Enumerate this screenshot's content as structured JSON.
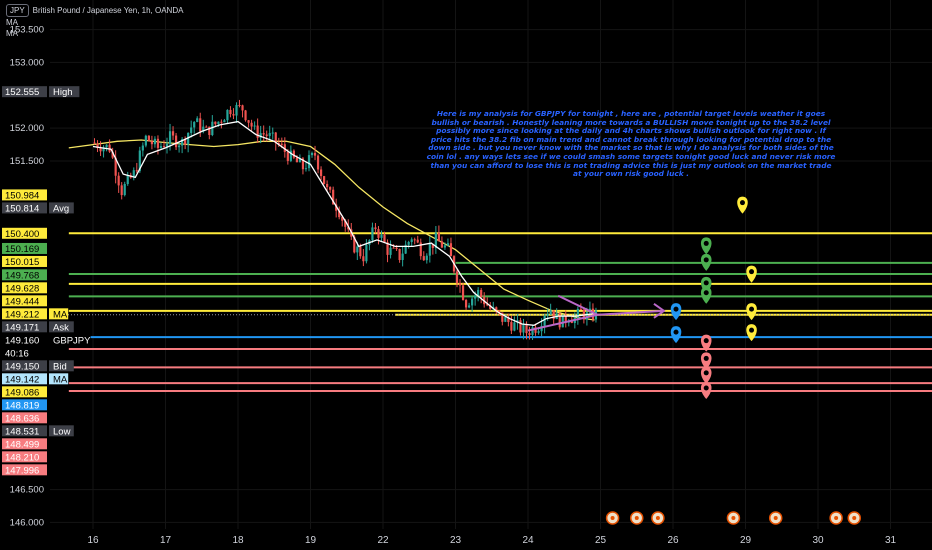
{
  "header": {
    "symbol_badge": "JPY",
    "title": "British Pound / Japanese Yen, 1h, OANDA",
    "indicators": [
      "MA",
      "MA"
    ]
  },
  "annotation_text": "Here is my analysis for GBPJPY for tonight , here are , potential target levels weather it goes bullish or bearish . Honestly leaning more towards a BULLISH move tonight up to the 38.2 level possibly more since looking at the daily and 4h charts shows bullish outlook for right now . If price hits the 38.2 fib on main trend and cannot break through looking for potential drop to the down side . but you never know with the market so that is why I do analysis for both sides of the coin lol . any ways lets see if we could smash some targets tonight good luck and never risk more than you can afford to lose this is not trading advice this is just my outlook on the market trade at your own risk good luck .",
  "colors": {
    "background": "#000000",
    "text": "#d1d4dc",
    "candle_up": "#26a69a",
    "candle_down": "#ef5350",
    "ma_white": "#ffffff",
    "ma_yellow": "#f5e663",
    "level_yellow": "#ffeb3b",
    "level_green": "#4caf50",
    "level_red": "#f77c80",
    "level_blue": "#2196f3",
    "arrow_purple": "#ba68c8",
    "annotation_blue": "#2962ff"
  },
  "chart_data": {
    "type": "candlestick",
    "title": "British Pound / Japanese Yen, 1h, OANDA",
    "ylim": [
      145.9,
      153.95
    ],
    "y_ticks": [
      "153.500",
      "153.000",
      "152.000",
      "151.500",
      "146.500",
      "146.000"
    ],
    "x_ticks": [
      {
        "label": "16",
        "t": 0.0
      },
      {
        "label": "17",
        "t": 24
      },
      {
        "label": "18",
        "t": 48
      },
      {
        "label": "19",
        "t": 72
      },
      {
        "label": "22",
        "t": 96
      },
      {
        "label": "23",
        "t": 120
      },
      {
        "label": "24",
        "t": 144
      },
      {
        "label": "25",
        "t": 168
      },
      {
        "label": "26",
        "t": 192
      },
      {
        "label": "29",
        "t": 216
      },
      {
        "label": "30",
        "t": 240
      },
      {
        "label": "31",
        "t": 264
      }
    ],
    "price_path": [
      [
        0,
        151.78
      ],
      [
        6,
        151.7
      ],
      [
        10,
        151.05
      ],
      [
        14,
        151.3
      ],
      [
        18,
        151.85
      ],
      [
        22,
        151.7
      ],
      [
        26,
        151.85
      ],
      [
        30,
        151.78
      ],
      [
        34,
        152.1
      ],
      [
        38,
        151.95
      ],
      [
        42,
        152.1
      ],
      [
        46,
        152.3
      ],
      [
        50,
        152.3
      ],
      [
        54,
        151.95
      ],
      [
        58,
        151.9
      ],
      [
        62,
        151.75
      ],
      [
        66,
        151.55
      ],
      [
        70,
        151.4
      ],
      [
        74,
        151.6
      ],
      [
        78,
        151.05
      ],
      [
        82,
        150.75
      ],
      [
        86,
        150.25
      ],
      [
        90,
        150.05
      ],
      [
        94,
        150.5
      ],
      [
        98,
        150.15
      ],
      [
        102,
        150.05
      ],
      [
        106,
        150.35
      ],
      [
        110,
        150.1
      ],
      [
        114,
        150.3
      ],
      [
        118,
        150.15
      ],
      [
        122,
        149.6
      ],
      [
        124,
        149.35
      ],
      [
        128,
        149.5
      ],
      [
        132,
        149.25
      ],
      [
        136,
        149.1
      ],
      [
        140,
        149.0
      ],
      [
        144,
        148.9
      ],
      [
        146,
        148.95
      ],
      [
        148,
        149.0
      ],
      [
        150,
        149.2
      ],
      [
        152,
        149.25
      ],
      [
        154,
        149.1
      ],
      [
        156,
        149.05
      ],
      [
        158,
        149.15
      ],
      [
        160,
        149.1
      ],
      [
        162,
        149.2
      ],
      [
        164,
        149.14
      ],
      [
        166,
        149.16
      ]
    ],
    "ma_white": [
      [
        0,
        151.72
      ],
      [
        6,
        151.68
      ],
      [
        10,
        151.3
      ],
      [
        14,
        151.25
      ],
      [
        18,
        151.6
      ],
      [
        24,
        151.7
      ],
      [
        30,
        151.82
      ],
      [
        36,
        151.95
      ],
      [
        42,
        152.05
      ],
      [
        48,
        152.1
      ],
      [
        54,
        151.9
      ],
      [
        60,
        151.8
      ],
      [
        66,
        151.6
      ],
      [
        72,
        151.45
      ],
      [
        78,
        151.0
      ],
      [
        84,
        150.55
      ],
      [
        88,
        150.2
      ],
      [
        94,
        150.3
      ],
      [
        100,
        150.2
      ],
      [
        106,
        150.2
      ],
      [
        112,
        150.25
      ],
      [
        118,
        150.05
      ],
      [
        122,
        149.75
      ],
      [
        126,
        149.5
      ],
      [
        130,
        149.35
      ],
      [
        134,
        149.2
      ],
      [
        138,
        149.1
      ],
      [
        142,
        149.02
      ],
      [
        146,
        149.0
      ],
      [
        150,
        149.1
      ],
      [
        154,
        149.14
      ],
      [
        160,
        149.14
      ],
      [
        166,
        149.18
      ]
    ],
    "ma_yellow": [
      [
        -8,
        151.7
      ],
      [
        0,
        151.75
      ],
      [
        8,
        151.8
      ],
      [
        16,
        151.82
      ],
      [
        24,
        151.78
      ],
      [
        32,
        151.75
      ],
      [
        40,
        151.72
      ],
      [
        48,
        151.75
      ],
      [
        56,
        151.8
      ],
      [
        64,
        151.8
      ],
      [
        72,
        151.72
      ],
      [
        80,
        151.45
      ],
      [
        88,
        151.1
      ],
      [
        96,
        150.8
      ],
      [
        104,
        150.55
      ],
      [
        112,
        150.35
      ],
      [
        120,
        150.15
      ],
      [
        128,
        149.85
      ],
      [
        136,
        149.55
      ],
      [
        144,
        149.38
      ],
      [
        152,
        149.22
      ],
      [
        160,
        149.12
      ],
      [
        166,
        149.08
      ]
    ],
    "price_labels": [
      {
        "text": "152.555",
        "label": "High",
        "value": 152.555,
        "bg": "#3d3f47",
        "fg": "#ffffff",
        "label_bg": "#3d3f47"
      },
      {
        "text": "150.984",
        "label": "",
        "value": 150.984,
        "bg": "#ffeb3b",
        "fg": "#000000"
      },
      {
        "text": "150.814",
        "label": "Avg",
        "value": 150.814,
        "bg": "#3d3f47",
        "fg": "#ffffff",
        "label_bg": "#3d3f47"
      },
      {
        "text": "150.400",
        "label": "",
        "value": 150.4,
        "bg": "#ffeb3b",
        "fg": "#000000"
      },
      {
        "text": "150.169",
        "label": "",
        "value": 150.169,
        "bg": "#4caf50",
        "fg": "#000000"
      },
      {
        "text": "150.015",
        "label": "",
        "value": 150.015,
        "bg": "#ffeb3b",
        "fg": "#000000"
      },
      {
        "text": "149.768",
        "label": "",
        "value": 149.768,
        "bg": "#4caf50",
        "fg": "#000000"
      },
      {
        "text": "149.628",
        "label": "",
        "value": 149.628,
        "bg": "#ffeb3b",
        "fg": "#000000"
      },
      {
        "text": "149.444",
        "label": "",
        "value": 149.444,
        "bg": "#ffeb3b",
        "fg": "#000000"
      },
      {
        "text": "149.212",
        "label": "MA",
        "value": 149.212,
        "bg": "#ffeb3b",
        "fg": "#000000",
        "label_bg": "#ffeb3b"
      },
      {
        "text": "149.171",
        "label": "Ask",
        "value": 149.171,
        "bg": "#3d3f47",
        "fg": "#ffffff",
        "label_bg": "#3d3f47"
      },
      {
        "text": "149.160",
        "label": "GBPJPY",
        "value": 149.16,
        "bg": "#000000",
        "fg": "#ffffff",
        "label_bg": "#000000"
      },
      {
        "text": "40:16",
        "label": "",
        "value": 149.035,
        "bg": "#000000",
        "fg": "#ffffff"
      },
      {
        "text": "149.150",
        "label": "Bid",
        "value": 149.15,
        "bg": "#3d3f47",
        "fg": "#ffffff",
        "label_bg": "#3d3f47"
      },
      {
        "text": "149.142",
        "label": "MA",
        "value": 149.142,
        "bg": "#b3e5fc",
        "fg": "#000000",
        "label_bg": "#b3e5fc"
      },
      {
        "text": "149.086",
        "label": "",
        "value": 149.086,
        "bg": "#ffeb3b",
        "fg": "#000000"
      },
      {
        "text": "148.819",
        "label": "",
        "value": 148.819,
        "bg": "#2196f3",
        "fg": "#ffffff"
      },
      {
        "text": "148.636",
        "label": "",
        "value": 148.636,
        "bg": "#f77c80",
        "fg": "#ffffff"
      },
      {
        "text": "148.531",
        "label": "Low",
        "value": 148.531,
        "bg": "#3d3f47",
        "fg": "#ffffff",
        "label_bg": "#3d3f47"
      },
      {
        "text": "148.499",
        "label": "",
        "value": 148.499,
        "bg": "#f77c80",
        "fg": "#ffffff"
      },
      {
        "text": "148.210",
        "label": "",
        "value": 148.21,
        "bg": "#f77c80",
        "fg": "#ffffff"
      },
      {
        "text": "147.996",
        "label": "",
        "value": 147.996,
        "bg": "#f77c80",
        "fg": "#ffffff"
      }
    ],
    "levels": [
      {
        "price": 150.4,
        "color": "#ffeb3b",
        "start_t": -8
      },
      {
        "price": 149.95,
        "color": "#4caf50",
        "start_t": 120
      },
      {
        "price": 149.78,
        "color": "#4caf50",
        "start_t": -8
      },
      {
        "price": 149.63,
        "color": "#ffeb3b",
        "start_t": -8
      },
      {
        "price": 149.44,
        "color": "#4caf50",
        "start_t": -8
      },
      {
        "price": 149.22,
        "color": "#ffeb3b",
        "start_t": -8
      },
      {
        "price": 149.16,
        "color": "#ffeb3b",
        "start_t": 100
      },
      {
        "price": 148.82,
        "color": "#2196f3",
        "start_t": -8
      },
      {
        "price": 148.64,
        "color": "#f77c80",
        "start_t": -8
      },
      {
        "price": 148.36,
        "color": "#f77c80",
        "start_t": -8
      },
      {
        "price": 148.12,
        "color": "#f77c80",
        "start_t": -8
      },
      {
        "price": 148.0,
        "color": "#f77c80",
        "start_t": -8
      }
    ],
    "target_markers": [
      {
        "t": 215,
        "price": 150.82,
        "color": "#ffeb3b"
      },
      {
        "t": 203,
        "price": 150.2,
        "color": "#4caf50"
      },
      {
        "t": 203,
        "price": 149.95,
        "color": "#4caf50"
      },
      {
        "t": 218,
        "price": 149.77,
        "color": "#ffeb3b"
      },
      {
        "t": 203,
        "price": 149.6,
        "color": "#4caf50"
      },
      {
        "t": 203,
        "price": 149.45,
        "color": "#4caf50"
      },
      {
        "t": 193,
        "price": 149.2,
        "color": "#2196f3"
      },
      {
        "t": 218,
        "price": 149.2,
        "color": "#ffeb3b"
      },
      {
        "t": 218,
        "price": 148.88,
        "color": "#ffeb3b"
      },
      {
        "t": 193,
        "price": 148.85,
        "color": "#2196f3"
      },
      {
        "t": 203,
        "price": 148.72,
        "color": "#f77c80"
      },
      {
        "t": 203,
        "price": 148.45,
        "color": "#f77c80"
      },
      {
        "t": 203,
        "price": 148.23,
        "color": "#f77c80"
      },
      {
        "t": 203,
        "price": 148.0,
        "color": "#f77c80"
      }
    ],
    "event_icons": [
      {
        "t": 172
      },
      {
        "t": 180
      },
      {
        "t": 187
      },
      {
        "t": 212
      },
      {
        "t": 226
      },
      {
        "t": 246
      },
      {
        "t": 252
      }
    ]
  }
}
